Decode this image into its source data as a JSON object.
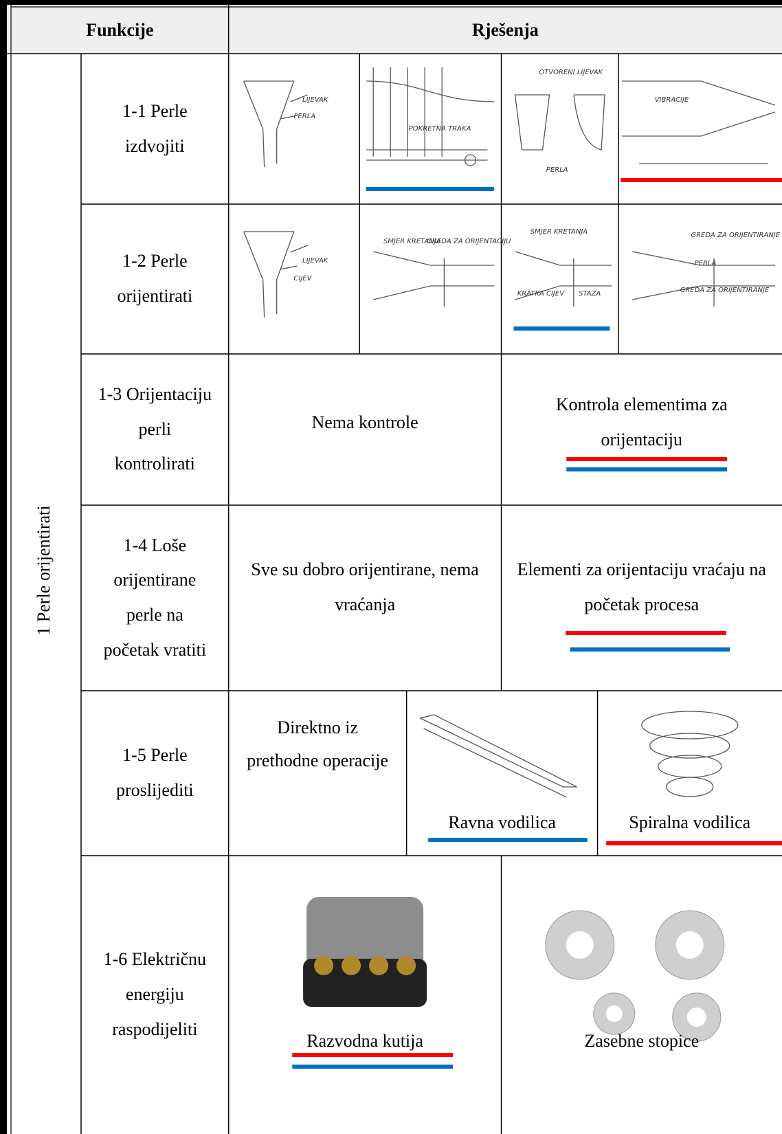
{
  "header": {
    "functions": "Funkcije",
    "solutions": "Rješenja"
  },
  "group_label": "1 Perle orijentirati",
  "rows": [
    {
      "function": "1-1 Perle izdvojiti",
      "solutions": [
        {
          "sketch_labels": [
            "LIJEVAK",
            "PERLA"
          ]
        },
        {
          "sketch_labels": [
            "POKRETNA TRAKA"
          ],
          "marks": [
            "#0070c0"
          ]
        },
        {
          "sketch_labels": [
            "OTVORENI LIJEVAK",
            "PERLA"
          ]
        },
        {
          "sketch_labels": [
            "VIBRACIJE"
          ],
          "marks": [
            "#ff0000"
          ]
        }
      ]
    },
    {
      "function": "1-2 Perle orijentirati",
      "solutions": [
        {
          "sketch_labels": [
            "LIJEVAK",
            "CIJEV"
          ]
        },
        {
          "sketch_labels": [
            "SMJER KRETANJA",
            "GREDA ZA ORIJENTACIJU"
          ]
        },
        {
          "sketch_labels": [
            "SMJER KRETANJA",
            "KRATKA CIJEV",
            "STAZA"
          ],
          "marks": [
            "#0070c0"
          ]
        },
        {
          "sketch_labels": [
            "GREDA ZA ORIJENTIRANJE",
            "PERLA",
            "GREDA ZA ORIJENTIRANJE"
          ]
        }
      ]
    },
    {
      "function": "1-3 Orijentaciju perli kontrolirati",
      "solutions": [
        {
          "text": "Nema kontrole"
        },
        {
          "text": "Kontrola elementima za orijentaciju",
          "marks": [
            "#ff0000",
            "#0070c0"
          ]
        }
      ]
    },
    {
      "function": "1-4 Loše orijentirane perle na početak vratiti",
      "solutions": [
        {
          "text": "Sve su dobro orijentirane, nema vraćanja"
        },
        {
          "text": "Elementi za orijentaciju vraćaju na početak procesa",
          "marks": [
            "#ff0000",
            "#0070c0"
          ]
        }
      ]
    },
    {
      "function": "1-5 Perle proslijediti",
      "solutions": [
        {
          "text": "Direktno iz prethodne operacije"
        },
        {
          "caption": "Ravna vodilica",
          "marks": [
            "#0070c0"
          ]
        },
        {
          "caption": "Spiralna vodilica",
          "marks": [
            "#ff0000"
          ]
        }
      ]
    },
    {
      "function": "1-6 Električnu energiju raspodijeliti",
      "solutions": [
        {
          "caption": "Razvodna kutija",
          "marks": [
            "#ff0000",
            "#0070c0"
          ]
        },
        {
          "caption": "Zasebne stopice"
        }
      ]
    }
  ]
}
